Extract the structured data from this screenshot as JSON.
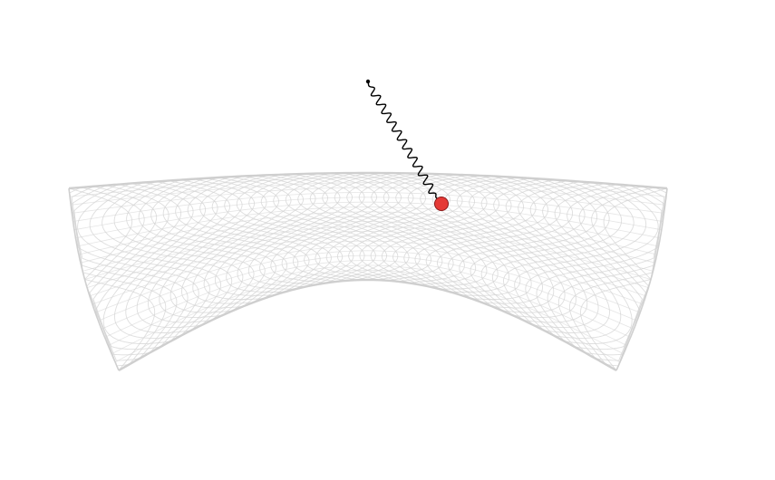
{
  "scene": {
    "surface": {
      "kind": "saddle-wireframe",
      "line_color": "#d3d3d3",
      "edge_color": "#cfcfcf"
    },
    "path": {
      "kind": "wavy-trajectory",
      "color": "#000000"
    },
    "start_marker": {
      "color": "#000000"
    },
    "ball": {
      "fill": "#e53935",
      "stroke": "#8b1a1a"
    }
  }
}
